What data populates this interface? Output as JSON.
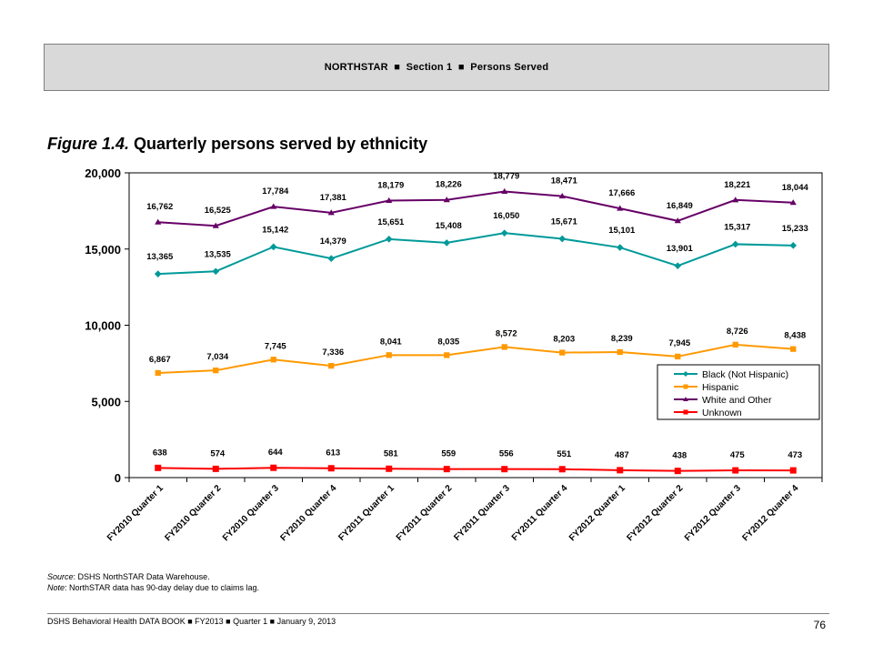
{
  "header": {
    "part1": "NORTHSTAR",
    "part2": "Section 1",
    "part3": "Persons Served",
    "separator": "■"
  },
  "figure": {
    "label": "Figure 1.4.",
    "title": "Quarterly persons served by ethnicity"
  },
  "notes": {
    "source_key": "Source",
    "source_text": ": DSHS NorthSTAR Data Warehouse.",
    "note_key": "Note",
    "note_text": ": NorthSTAR data has 90-day delay due to claims lag."
  },
  "footer": {
    "text": "DSHS Behavioral Health DATA BOOK  ■  FY2013  ■  Quarter 1 ■  January  9, 2013",
    "page": "76"
  },
  "chart_data": {
    "type": "line",
    "title": "",
    "xlabel": "",
    "ylabel": "",
    "ylim": [
      0,
      20000
    ],
    "yticks": [
      "0",
      "5,000",
      "10,000",
      "15,000",
      "20,000"
    ],
    "categories": [
      "FY2010 Quarter 1",
      "FY2010 Quarter 2",
      "FY2010 Quarter 3",
      "FY2010 Quarter 4",
      "FY2011 Quarter 1",
      "FY2011 Quarter 2",
      "FY2011 Quarter 3",
      "FY2011 Quarter 4",
      "FY2012 Quarter 1",
      "FY2012 Quarter 2",
      "FY2012 Quarter 3",
      "FY2012 Quarter 4"
    ],
    "legend_position": "right",
    "grid": false,
    "series": [
      {
        "name": "Black (Not Hispanic)",
        "color": "#009999",
        "marker": "diamond",
        "values": [
          13365,
          13535,
          15142,
          14379,
          15651,
          15408,
          16050,
          15671,
          15101,
          13901,
          15317,
          15233
        ],
        "labels": [
          "13,365",
          "13,535",
          "15,142",
          "14,379",
          "15,651",
          "15,408",
          "16,050",
          "15,671",
          "15,101",
          "13,901",
          "15,317",
          "15,233"
        ]
      },
      {
        "name": "Hispanic",
        "color": "#ff9900",
        "marker": "square",
        "values": [
          6867,
          7034,
          7745,
          7336,
          8041,
          8035,
          8572,
          8203,
          8239,
          7945,
          8726,
          8438
        ],
        "labels": [
          "6,867",
          "7,034",
          "7,745",
          "7,336",
          "8,041",
          "8,035",
          "8,572",
          "8,203",
          "8,239",
          "7,945",
          "8,726",
          "8,438"
        ]
      },
      {
        "name": "White and Other",
        "color": "#660066",
        "marker": "triangle",
        "values": [
          16762,
          16525,
          17784,
          17381,
          18179,
          18226,
          18779,
          18471,
          17666,
          16849,
          18221,
          18044
        ],
        "labels": [
          "16,762",
          "16,525",
          "17,784",
          "17,381",
          "18,179",
          "18,226",
          "18,779",
          "18,471",
          "17,666",
          "16,849",
          "18,221",
          "18,044"
        ]
      },
      {
        "name": "Unknown",
        "color": "#ff0000",
        "marker": "square",
        "values": [
          638,
          574,
          644,
          613,
          581,
          559,
          556,
          551,
          487,
          438,
          475,
          473
        ],
        "labels": [
          "638",
          "574",
          "644",
          "613",
          "581",
          "559",
          "556",
          "551",
          "487",
          "438",
          "475",
          "473"
        ]
      }
    ]
  }
}
